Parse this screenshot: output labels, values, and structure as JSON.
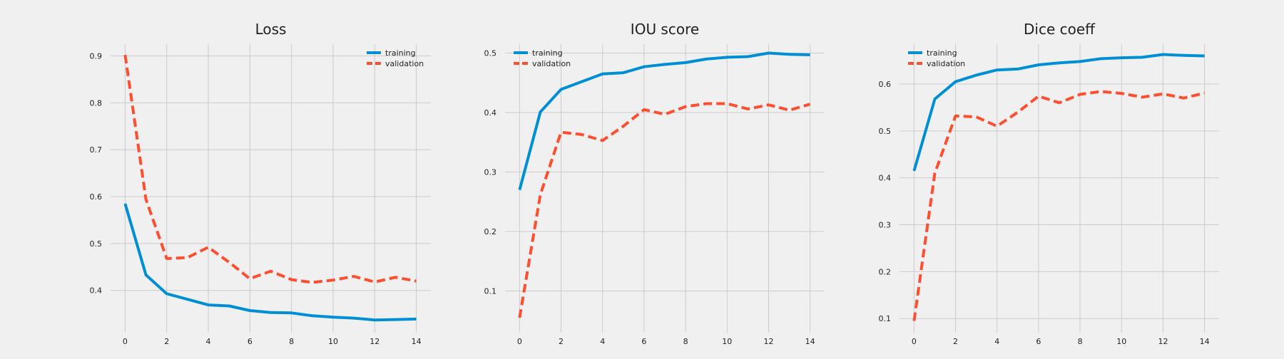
{
  "figure": {
    "background": "#f0f0f0"
  },
  "colors": {
    "training": "#008fd5",
    "validation": "#fc4f30"
  },
  "chart_data": [
    {
      "type": "line",
      "title": "Loss",
      "xlabel": "",
      "ylabel": "",
      "x": [
        0,
        1,
        2,
        3,
        4,
        5,
        6,
        7,
        8,
        9,
        10,
        11,
        12,
        13,
        14
      ],
      "xticks": [
        0,
        2,
        4,
        6,
        8,
        10,
        12,
        14
      ],
      "xlim": [
        -0.7,
        14.7
      ],
      "yticks": [
        0.4,
        0.5,
        0.6,
        0.7,
        0.8,
        0.9
      ],
      "ylim": [
        0.31,
        0.925
      ],
      "grid": true,
      "legend": "top-right",
      "series": [
        {
          "name": "training",
          "style": "solid",
          "values": [
            0.585,
            0.433,
            0.393,
            0.381,
            0.369,
            0.367,
            0.357,
            0.353,
            0.352,
            0.346,
            0.343,
            0.341,
            0.337,
            0.338,
            0.339
          ]
        },
        {
          "name": "validation",
          "style": "dashed",
          "values": [
            0.902,
            0.594,
            0.468,
            0.47,
            0.492,
            0.46,
            0.425,
            0.441,
            0.423,
            0.417,
            0.422,
            0.43,
            0.418,
            0.428,
            0.42
          ]
        }
      ]
    },
    {
      "type": "line",
      "title": "IOU score",
      "xlabel": "",
      "ylabel": "",
      "x": [
        0,
        1,
        2,
        3,
        4,
        5,
        6,
        7,
        8,
        9,
        10,
        11,
        12,
        13,
        14
      ],
      "xticks": [
        0,
        2,
        4,
        6,
        8,
        10,
        12,
        14
      ],
      "xlim": [
        -0.7,
        14.7
      ],
      "yticks": [
        0.1,
        0.2,
        0.3,
        0.4,
        0.5
      ],
      "ylim": [
        0.03,
        0.515
      ],
      "grid": true,
      "legend": "top-left",
      "series": [
        {
          "name": "training",
          "style": "solid",
          "values": [
            0.27,
            0.401,
            0.439,
            0.452,
            0.465,
            0.467,
            0.477,
            0.481,
            0.484,
            0.49,
            0.493,
            0.494,
            0.5,
            0.498,
            0.497
          ]
        },
        {
          "name": "validation",
          "style": "dashed",
          "values": [
            0.055,
            0.262,
            0.367,
            0.363,
            0.353,
            0.377,
            0.405,
            0.397,
            0.41,
            0.415,
            0.415,
            0.406,
            0.413,
            0.404,
            0.414
          ]
        }
      ]
    },
    {
      "type": "line",
      "title": "Dice coeff",
      "xlabel": "",
      "ylabel": "",
      "x": [
        0,
        1,
        2,
        3,
        4,
        5,
        6,
        7,
        8,
        9,
        10,
        11,
        12,
        13,
        14
      ],
      "xticks": [
        0,
        2,
        4,
        6,
        8,
        10,
        12,
        14
      ],
      "xlim": [
        -0.7,
        14.7
      ],
      "yticks": [
        0.1,
        0.2,
        0.3,
        0.4,
        0.5,
        0.6
      ],
      "ylim": [
        0.07,
        0.685
      ],
      "grid": true,
      "legend": "top-left",
      "series": [
        {
          "name": "training",
          "style": "solid",
          "values": [
            0.415,
            0.568,
            0.605,
            0.619,
            0.63,
            0.632,
            0.641,
            0.645,
            0.648,
            0.654,
            0.656,
            0.657,
            0.663,
            0.661,
            0.66
          ]
        },
        {
          "name": "validation",
          "style": "dashed",
          "values": [
            0.095,
            0.41,
            0.532,
            0.53,
            0.51,
            0.54,
            0.574,
            0.56,
            0.578,
            0.584,
            0.58,
            0.572,
            0.579,
            0.57,
            0.581
          ]
        }
      ]
    }
  ]
}
